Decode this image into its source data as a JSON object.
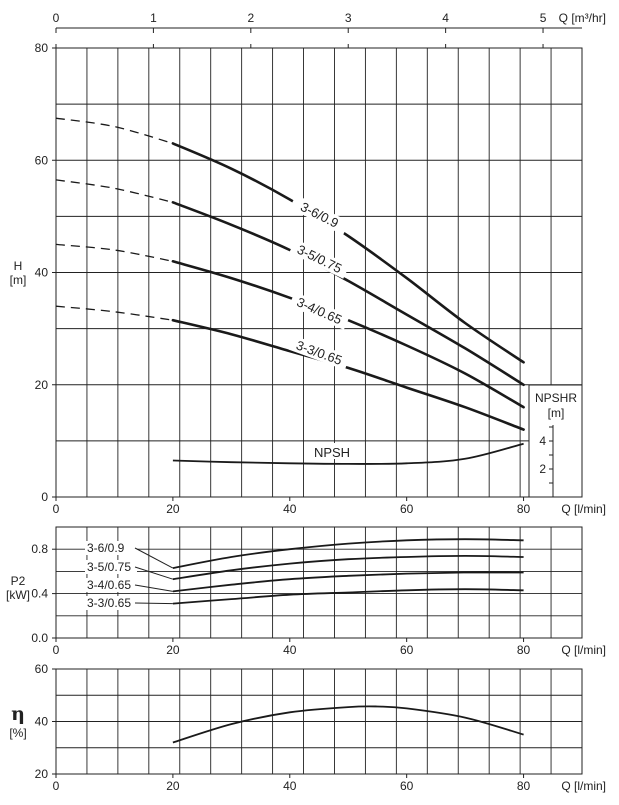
{
  "chart_data": [
    {
      "type": "line",
      "name": "head",
      "x_label": "Q [l/min]",
      "x_top_label": "Q [m³/hr]",
      "y_label_line1": "H",
      "y_label_line2": "[m]",
      "xlim": [
        0,
        90
      ],
      "ylim": [
        0,
        80
      ],
      "x_ticks": [
        "0",
        "20",
        "40",
        "60",
        "80"
      ],
      "y_ticks": [
        "0",
        "20",
        "40",
        "60",
        "80"
      ],
      "x_top_ticks": [
        "0",
        "1",
        "2",
        "3",
        "4",
        "5"
      ],
      "grid": true,
      "series": [
        {
          "name": "3-6/0.9",
          "x": [
            20,
            30,
            40,
            50,
            60,
            70,
            80
          ],
          "y": [
            63,
            58.5,
            53,
            46.5,
            39,
            31,
            24
          ],
          "ext_x": [
            0,
            10,
            20
          ],
          "ext_y": [
            67.5,
            66,
            63
          ]
        },
        {
          "name": "3-5/0.75",
          "x": [
            20,
            30,
            40,
            50,
            60,
            70,
            80
          ],
          "y": [
            52.5,
            48.5,
            44,
            38.5,
            32.5,
            26.5,
            20
          ],
          "ext_x": [
            0,
            10,
            20
          ],
          "ext_y": [
            56.5,
            55,
            52.5
          ]
        },
        {
          "name": "3-4/0.65",
          "x": [
            20,
            30,
            40,
            50,
            60,
            70,
            80
          ],
          "y": [
            42,
            39,
            35.5,
            31.5,
            27,
            22,
            16
          ],
          "ext_x": [
            0,
            10,
            20
          ],
          "ext_y": [
            45,
            44,
            42
          ]
        },
        {
          "name": "3-3/0.65",
          "x": [
            20,
            30,
            40,
            50,
            60,
            70,
            80
          ],
          "y": [
            31.5,
            29,
            26,
            23,
            19.5,
            16,
            12
          ],
          "ext_x": [
            0,
            10,
            20
          ],
          "ext_y": [
            34,
            33,
            31.5
          ]
        },
        {
          "name": "NPSH",
          "x": [
            20,
            30,
            40,
            50,
            60,
            70,
            80
          ],
          "y": [
            6.5,
            6.2,
            6,
            5.9,
            6,
            6.8,
            9.5
          ]
        }
      ],
      "npshr_axis": {
        "label_line1": "NPSHR",
        "label_line2": "[m]",
        "ticks": [
          "2",
          "4"
        ]
      }
    },
    {
      "type": "line",
      "name": "power",
      "x_label": "Q [l/min]",
      "y_label_line1": "P2",
      "y_label_line2": "[kW]",
      "xlim": [
        0,
        90
      ],
      "ylim": [
        0,
        1
      ],
      "x_ticks": [
        "0",
        "20",
        "40",
        "60",
        "80"
      ],
      "y_ticks": [
        "0.0",
        "0.4",
        "0.8"
      ],
      "grid": true,
      "series": [
        {
          "name": "3-6/0.9",
          "x": [
            20,
            30,
            40,
            50,
            60,
            70,
            80
          ],
          "y": [
            0.63,
            0.73,
            0.8,
            0.85,
            0.88,
            0.89,
            0.88
          ]
        },
        {
          "name": "3-5/0.75",
          "x": [
            20,
            30,
            40,
            50,
            60,
            70,
            80
          ],
          "y": [
            0.53,
            0.61,
            0.67,
            0.71,
            0.73,
            0.74,
            0.73
          ]
        },
        {
          "name": "3-4/0.65",
          "x": [
            20,
            30,
            40,
            50,
            60,
            70,
            80
          ],
          "y": [
            0.42,
            0.48,
            0.53,
            0.56,
            0.58,
            0.59,
            0.59
          ]
        },
        {
          "name": "3-3/0.65",
          "x": [
            20,
            30,
            40,
            50,
            60,
            70,
            80
          ],
          "y": [
            0.31,
            0.35,
            0.39,
            0.41,
            0.43,
            0.44,
            0.43
          ]
        }
      ]
    },
    {
      "type": "line",
      "name": "efficiency",
      "x_label": "Q [l/min]",
      "y_label_line1": "η",
      "y_label_line2": "[%]",
      "xlim": [
        0,
        90
      ],
      "ylim": [
        20,
        60
      ],
      "x_ticks": [
        "0",
        "20",
        "40",
        "60",
        "80"
      ],
      "y_ticks": [
        "20",
        "40",
        "60"
      ],
      "grid": true,
      "series": [
        {
          "name": "",
          "x": [
            20,
            30,
            40,
            50,
            55,
            60,
            70,
            80
          ],
          "y": [
            32,
            39,
            43.5,
            45.5,
            45.7,
            45,
            41.5,
            35
          ]
        }
      ]
    }
  ]
}
